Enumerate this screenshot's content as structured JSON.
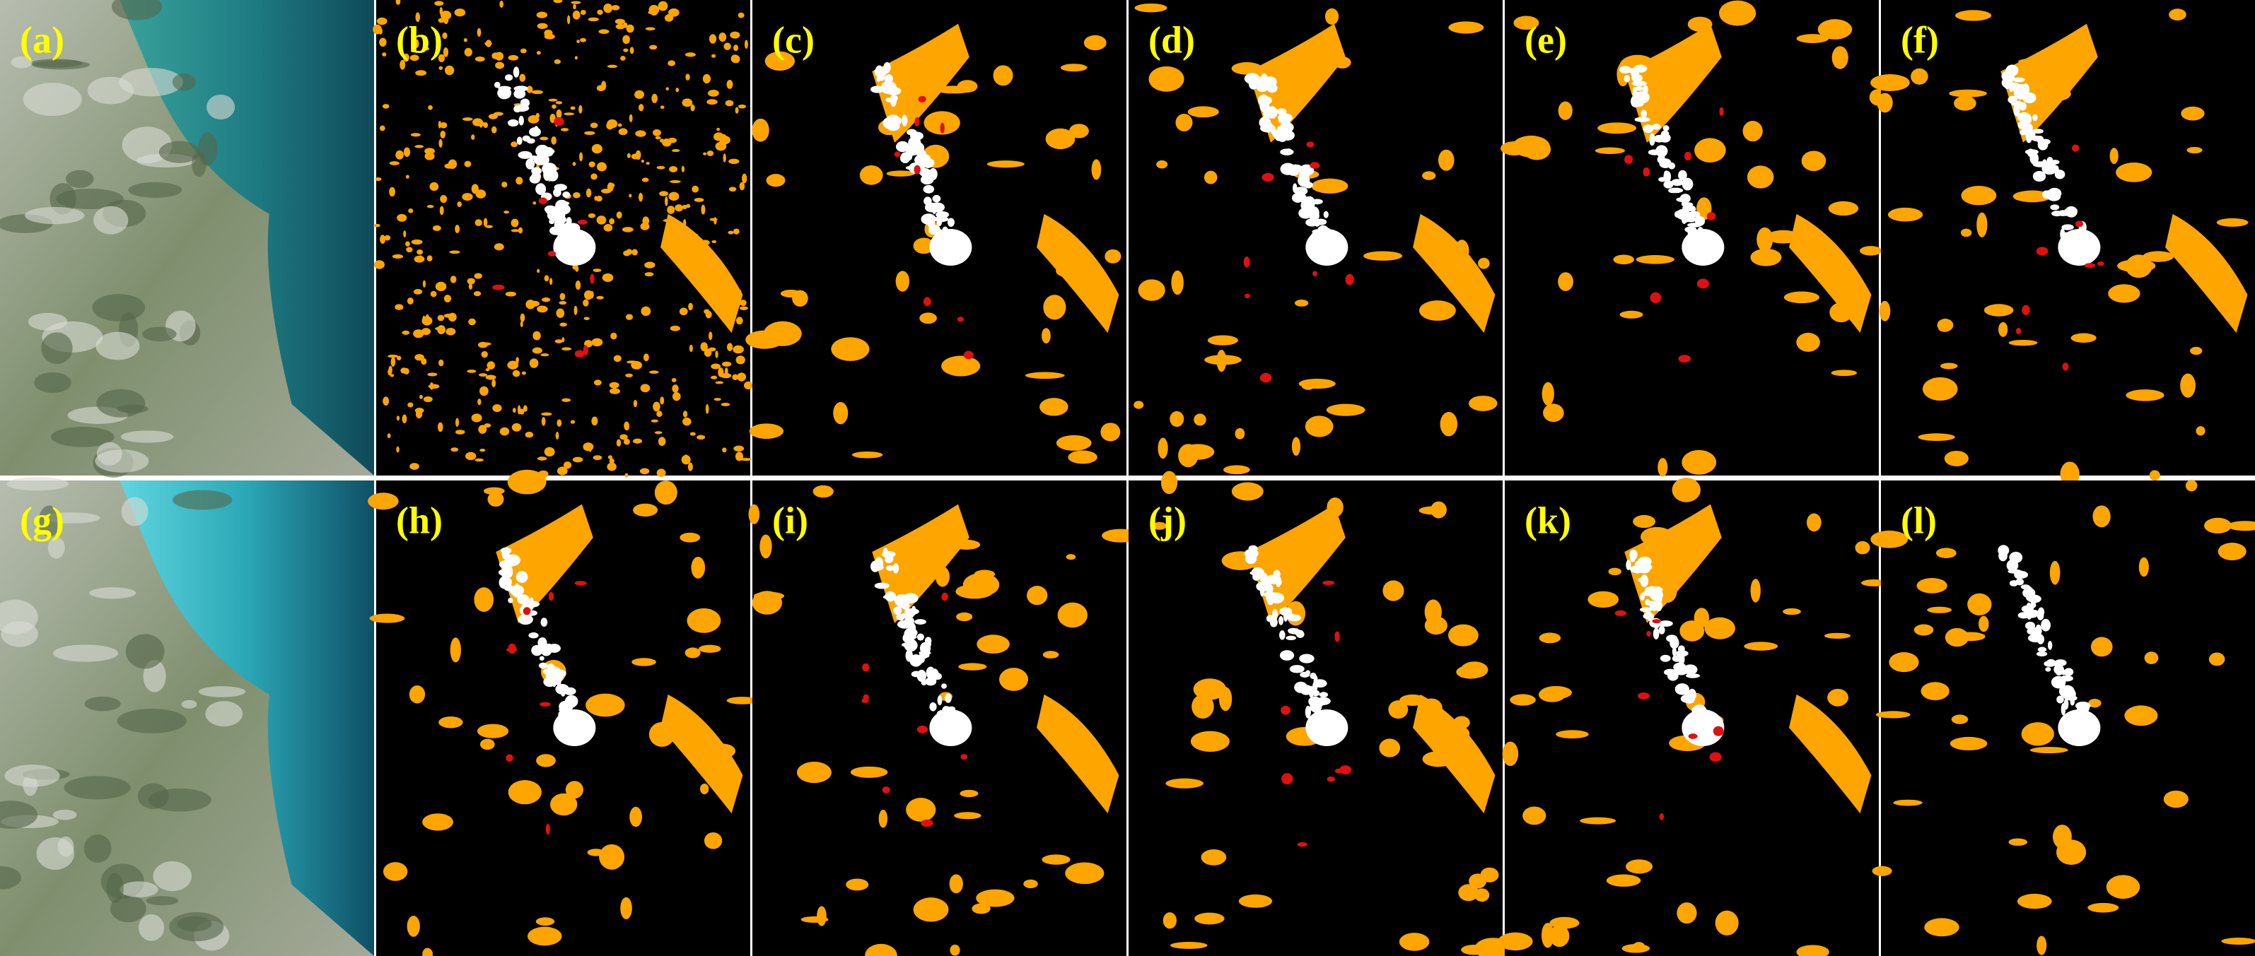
{
  "labels": [
    "(a)",
    "(b)",
    "(c)",
    "(d)",
    "(e)",
    "(f)",
    "(g)",
    "(h)",
    "(i)",
    "(j)",
    "(k)",
    "(l)"
  ]
}
